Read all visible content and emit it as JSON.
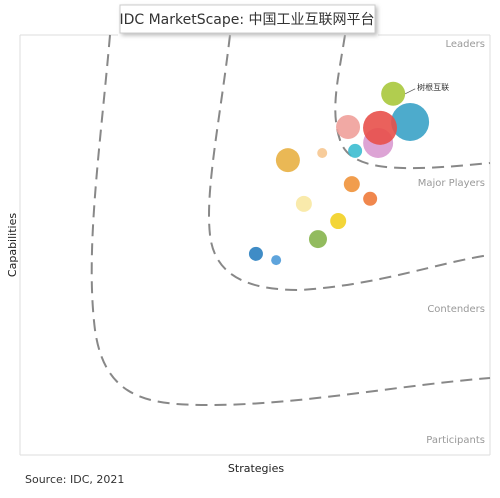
{
  "chart_data": {
    "type": "bubble",
    "title": "IDC MarketScape: 中国工业互联网平台",
    "x_label": "Strategies",
    "y_label": "Capabilities",
    "source": "Source: IDC, 2021",
    "regions": [
      "Leaders",
      "Major Players",
      "Contenders",
      "Participants"
    ],
    "xlim": [
      0,
      100
    ],
    "ylim": [
      0,
      100
    ],
    "x": [
      79.4,
      83.0,
      76.2,
      76.6,
      69.8,
      71.3,
      64.3,
      57.0,
      70.6,
      74.5,
      60.4,
      67.7,
      63.4,
      50.2,
      54.5
    ],
    "y": [
      86.0,
      79.3,
      74.3,
      77.9,
      78.1,
      72.4,
      71.9,
      70.2,
      64.5,
      61.0,
      59.8,
      55.7,
      51.4,
      47.9,
      46.4
    ],
    "sizes": [
      12,
      19,
      15,
      17,
      12,
      7,
      5,
      12,
      8,
      7,
      8,
      8,
      9,
      7,
      5
    ],
    "colors": [
      "#a8c83c",
      "#3aa2c6",
      "#d99ad0",
      "#e8504a",
      "#f0a09a",
      "#3cbdd0",
      "#f6c690",
      "#e8b042",
      "#f0923a",
      "#ee7a3a",
      "#f8e8a2",
      "#f2d022",
      "#86b44c",
      "#2a80c0",
      "#4c9ad8"
    ],
    "labels": [
      "树根互联",
      null,
      null,
      null,
      null,
      null,
      null,
      null,
      null,
      null,
      null,
      null,
      null,
      null,
      null
    ]
  }
}
